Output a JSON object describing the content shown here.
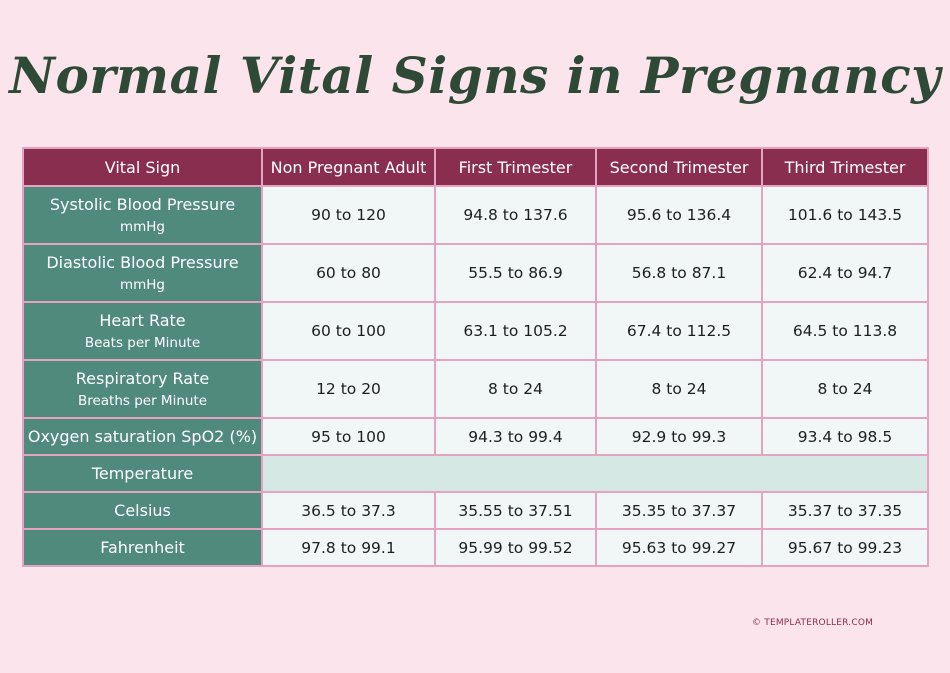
{
  "title": "Normal Vital Signs in Pregnancy",
  "headers": [
    "Vital Sign",
    "Non Pregnant Adult",
    "First Trimester",
    "Second Trimester",
    "Third Trimester"
  ],
  "rows": [
    {
      "label": "Systolic Blood Pressure",
      "unit": "mmHg",
      "values": [
        "90 to 120",
        "94.8 to 137.6",
        "95.6 to 136.4",
        "101.6 to 143.5"
      ]
    },
    {
      "label": "Diastolic Blood Pressure",
      "unit": "mmHg",
      "values": [
        "60 to 80",
        "55.5 to 86.9",
        "56.8 to 87.1",
        "62.4 to 94.7"
      ]
    },
    {
      "label": "Heart Rate",
      "unit": "Beats per Minute",
      "values": [
        "60 to 100",
        "63.1 to 105.2",
        "67.4 to 112.5",
        "64.5 to 113.8"
      ]
    },
    {
      "label": "Respiratory Rate",
      "unit": "Breaths per Minute",
      "values": [
        "12 to 20",
        "8 to 24",
        "8 to 24",
        "8 to 24"
      ]
    },
    {
      "label": "Oxygen saturation SpO2 (%)",
      "values": [
        "95 to 100",
        "94.3 to 99.4",
        "92.9 to 99.3",
        "93.4 to 98.5"
      ]
    },
    {
      "label": "Temperature"
    },
    {
      "label": "Celsius",
      "values": [
        "36.5 to 37.3",
        "35.55 to 37.51",
        "35.35 to 37.37",
        "35.37 to 37.35"
      ]
    },
    {
      "label": "Fahrenheit",
      "values": [
        "97.8 to 99.1",
        "95.99 to 99.52",
        "95.63 to 99.27",
        "95.67 to 99.23"
      ]
    }
  ],
  "footer": "© TEMPLATEROLLER.COM",
  "colors": {
    "background": "#fbe4ec",
    "title": "#2e4a36",
    "header": "#8a2e4f",
    "label_column": "#4f8a7c",
    "cell": "#f1f7f7",
    "section_cell": "#d6e8e3",
    "border": "#e4a3c0"
  }
}
